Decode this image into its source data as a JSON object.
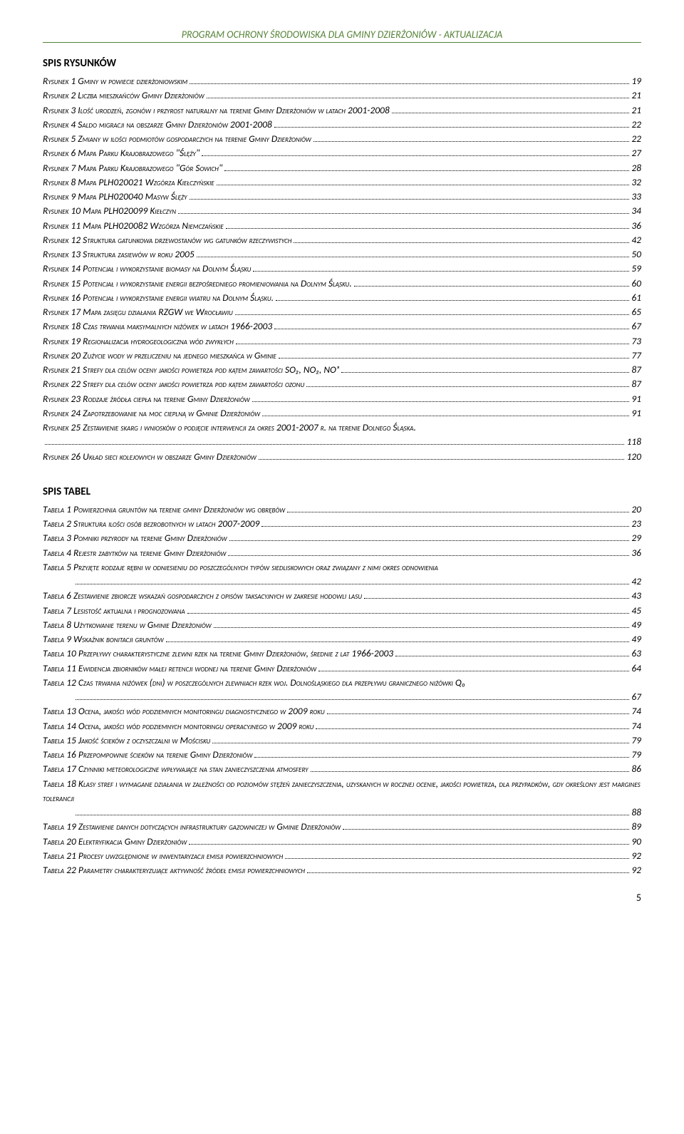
{
  "header": "PROGRAM OCHRONY ŚRODOWISKA DLA GMINY DZIERŻONIÓW - AKTUALIZACJA",
  "sections": [
    {
      "title": "SPIS RYSUNKÓW",
      "entries": [
        {
          "label": "Rysunek 1 Gminy w powiecie dzierżoniowskim",
          "page": "19",
          "indent": false
        },
        {
          "label": "Rysunek 2 Liczba mieszkańców Gminy Dzierżoniów",
          "page": "21",
          "indent": false
        },
        {
          "label": "Rysunek 3 Ilość urodzeń, zgonów i przyrost naturalny na terenie Gminy Dzierżoniów w latach 2001-2008",
          "page": "21",
          "indent": false
        },
        {
          "label": "Rysunek 4 Saldo migracji na obszarze Gminy Dzierżoniów 2001-2008",
          "page": "22",
          "indent": false
        },
        {
          "label": "Rysunek 5 Zmiany w ilości podmiotów gospodarczych na terenie Gminy Dzierżoniów",
          "page": "22",
          "indent": false
        },
        {
          "label": "Rysunek 6 Mapa Parku Krajobrazowego \"Ślęży\"",
          "page": "27",
          "indent": false
        },
        {
          "label": "Rysunek 7 Mapa Parku Krajobrazowego \"Gór Sowich\"",
          "page": "28",
          "indent": false
        },
        {
          "label": "Rysunek 8 Mapa PLH020021  Wzgórza Kiełczyńskie",
          "page": "32",
          "indent": false
        },
        {
          "label": "Rysunek 9 Mapa PLH020040 Masyw Ślęży",
          "page": "33",
          "indent": false
        },
        {
          "label": "Rysunek 10 Mapa PLH020099 Kiełczyn",
          "page": "34",
          "indent": false
        },
        {
          "label": "Rysunek 11 Mapa PLH020082 Wzgórza Niemczańskie",
          "page": "36",
          "indent": false
        },
        {
          "label": "Rysunek 12 Struktura gatunkowa drzewostanów wg gatunków rzeczywistych",
          "page": "42",
          "indent": false
        },
        {
          "label": "Rysunek 13 Struktura zasiewów w roku 2005",
          "page": "50",
          "indent": false
        },
        {
          "label": "Rysunek 14 Potencjał i wykorzystanie biomasy na Dolnym Śląsku",
          "page": "59",
          "indent": false
        },
        {
          "label": "Rysunek 15 Potencjał i wykorzystanie energii bezpośredniego promieniowania na Dolnym Śląsku.",
          "page": "60",
          "indent": false
        },
        {
          "label": "Rysunek 16 Potencjał i wykorzystanie energii wiatru na Dolnym Śląsku.",
          "page": "61",
          "indent": false
        },
        {
          "label": "Rysunek 17 Mapa zasięgu działania RZGW we Wrocławiu",
          "page": "65",
          "indent": false
        },
        {
          "label": "Rysunek 18 Czas trwania maksymalnych niżówek w latach 1966-2003",
          "page": "67",
          "indent": false
        },
        {
          "label": "Rysunek 19 Regionalizacja hydrogeologiczna wód zwykłych",
          "page": "73",
          "indent": false
        },
        {
          "label": "Rysunek 20 Zużycie wody w przeliczeniu na jednego mieszkańca w Gminie",
          "page": "77",
          "indent": false
        },
        {
          "label": "Rysunek 21 Strefy dla celów oceny jakości powietrza pod kątem zawartości SO₂, NO₂, NOₓ",
          "page": "87",
          "indent": false
        },
        {
          "label": "Rysunek 22 Strefy dla celów oceny jakości powietrza pod kątem zawartości ozonu",
          "page": "87",
          "indent": false
        },
        {
          "label": "Rysunek 23 Rodzaje źródła ciepła na terenie Gminy Dzierżoniów",
          "page": "91",
          "indent": false
        },
        {
          "label": "Rysunek 24 Zapotrzebowanie na moc cieplną w Gminie Dzierżoniów",
          "page": "91",
          "indent": false
        },
        {
          "label": "Rysunek 25 Zestawienie skarg i wniosków o podjęcie interwencji za okres 2001-2007 r. na terenie Dolnego Śląska.",
          "page": "118",
          "indent": false,
          "wrap": true
        },
        {
          "label": "Rysunek 26 Układ sieci kolejowych w obszarze Gminy Dzierżoniów",
          "page": "120",
          "indent": false
        }
      ]
    },
    {
      "title": "SPIS TABEL",
      "entries": [
        {
          "label": "Tabela 1 Powierzchnia gruntów na terenie gminy Dzierżoniów wg obrębów",
          "page": "20",
          "indent": false
        },
        {
          "label": "Tabela 2 Struktura ilości osób bezrobotnych w latach 2007-2009",
          "page": "23",
          "indent": false
        },
        {
          "label": "Tabela 3 Pomniki przyrody na terenie Gminy Dzierżoniów",
          "page": "29",
          "indent": false
        },
        {
          "label": "Tabela 4 Rejestr zabytków na terenie Gminy Dzierżoniów",
          "page": "36",
          "indent": false
        },
        {
          "label": "Tabela 5 Przyjęte rodzaje rębni w odniesieniu do poszczególnych typów siedliskowych oraz związany z nimi okres odnowienia",
          "page": "42",
          "indent": false,
          "wrap": true,
          "wrapIndent": true
        },
        {
          "label": "Tabela 6 Zestawienie zbiorcze wskazań gospodarczych z opisów taksacyjnych w zakresie hodowli lasu",
          "page": "43",
          "indent": false
        },
        {
          "label": "Tabela 7 Lesistość aktualna i prognozowana",
          "page": "45",
          "indent": false
        },
        {
          "label": "Tabela 8 Użytkowanie terenu w Gminie Dzierżoniów",
          "page": "49",
          "indent": false
        },
        {
          "label": "Tabela 9 Wskaźnik bonitacji gruntów",
          "page": "49",
          "indent": false
        },
        {
          "label": "Tabela 10 Przepływy charakterystyczne zlewni rzek na terenie Gminy Dzierżoniów, średnie z lat 1966-2003",
          "page": "63",
          "indent": false
        },
        {
          "label": "Tabela 11 Ewidencja zbiorników małej retencji wodnej na terenie Gminy Dzierżoniów",
          "page": "64",
          "indent": false
        },
        {
          "label": "Tabela 12 Czas trwania niżówek (dni) w poszczególnych zlewniach rzek woj. Dolnośląskiego dla przepływu granicznego niżówki Q₀",
          "page": "67",
          "indent": false,
          "wrap": true,
          "wrapIndent": true
        },
        {
          "label": "Tabela 13 Ocena, jakości wód podziemnych monitoringu diagnostycznego w 2009 roku",
          "page": "74",
          "indent": false
        },
        {
          "label": "Tabela 14 Ocena, jakości wód podziemnych monitoringu operacyjnego w 2009 roku",
          "page": "74",
          "indent": false
        },
        {
          "label": "Tabela 15 Jakość ścieków z oczyszczalni w Mościsku",
          "page": "79",
          "indent": false
        },
        {
          "label": "Tabela 16 Przepompownie ścieków na terenie Gminy Dzierżoniów",
          "page": "79",
          "indent": false
        },
        {
          "label": "Tabela 17 Czynniki meteorologiczne wpływające na stan zanieczyszczenia atmosfery",
          "page": "86",
          "indent": false
        },
        {
          "label": "Tabela 18 Klasy stref i wymagane działania w zależności od poziomów stężeń zanieczyszczenia, uzyskanych w rocznej ocenie, jakości powietrza, dla przypadków, gdy określony jest margines tolerancji",
          "page": "88",
          "indent": false,
          "wrap": true,
          "wrapIndent": true
        },
        {
          "label": "Tabela 19 Zestawienie danych dotyczących infrastruktury gazowniczej w Gminie Dzierżoniów",
          "page": "89",
          "indent": false
        },
        {
          "label": "Tabela 20 Elektryfikacja Gminy Dzierżoniów",
          "page": "90",
          "indent": false
        },
        {
          "label": "Tabela 21 Procesy uwzględnione w inwentaryzacji emisji powierzchniowych",
          "page": "92",
          "indent": false
        },
        {
          "label": "Tabela 22 Parametry charakteryzujące aktywność źródeł emisji powierzchniowych",
          "page": "92",
          "indent": false
        }
      ]
    }
  ],
  "pageNumber": "5"
}
